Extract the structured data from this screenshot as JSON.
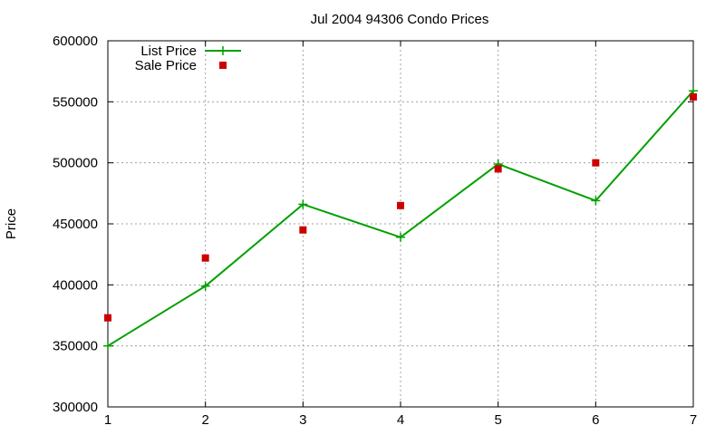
{
  "chart_data": {
    "type": "line",
    "title": "Jul 2004 94306 Condo Prices",
    "xlabel": "",
    "ylabel": "Price",
    "xlim": [
      1,
      7
    ],
    "ylim": [
      300000,
      600000
    ],
    "x_ticks": [
      "1",
      "2",
      "3",
      "4",
      "5",
      "6",
      "7"
    ],
    "y_ticks": [
      "300000",
      "350000",
      "400000",
      "450000",
      "500000",
      "550000",
      "600000"
    ],
    "grid": true,
    "legend_position": "top-left",
    "series": [
      {
        "name": "List Price",
        "style": "line-with-plus-markers",
        "color": "#00a000",
        "x": [
          1,
          2,
          3,
          4,
          5,
          6,
          7
        ],
        "y": [
          350000,
          399000,
          466000,
          439000,
          499000,
          469000,
          559000
        ]
      },
      {
        "name": "Sale Price",
        "style": "square-markers",
        "color": "#cc0000",
        "x": [
          1,
          2,
          3,
          4,
          5,
          6,
          7
        ],
        "y": [
          373000,
          422000,
          445000,
          465000,
          495000,
          500000,
          554000
        ]
      }
    ]
  }
}
